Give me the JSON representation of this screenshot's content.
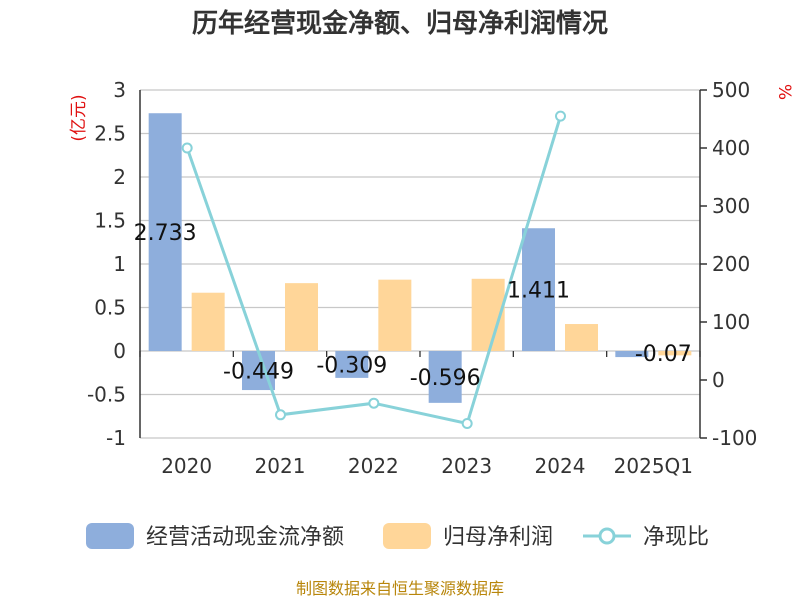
{
  "chart_data": {
    "type": "bar",
    "title": "历年经营现金净额、归母净利润情况",
    "categories": [
      "2020",
      "2021",
      "2022",
      "2023",
      "2024",
      "2025Q1"
    ],
    "left_axis": {
      "unit": "(亿元)",
      "ylim": [
        -1,
        3
      ],
      "ticks": [
        "3",
        "2.5",
        "2",
        "1.5",
        "1",
        "0.5",
        "0",
        "-0.5",
        "-1"
      ],
      "tick_values": [
        3,
        2.5,
        2,
        1.5,
        1,
        0.5,
        0,
        -0.5,
        -1
      ]
    },
    "right_axis": {
      "unit": "%",
      "ylim": [
        -100,
        500
      ],
      "ticks": [
        "500",
        "400",
        "300",
        "200",
        "100",
        "0",
        "-100"
      ],
      "tick_values": [
        500,
        400,
        300,
        200,
        100,
        0,
        -100
      ]
    },
    "series": [
      {
        "name": "经营活动现金流净额",
        "type": "bar",
        "axis": "left",
        "color": "#8eaedc",
        "values": [
          2.733,
          -0.449,
          -0.309,
          -0.596,
          1.411,
          -0.07
        ],
        "labels": [
          "2.733",
          "-0.449",
          "-0.309",
          "-0.596",
          "1.411",
          "-0.07"
        ]
      },
      {
        "name": "归母净利润",
        "type": "bar",
        "axis": "left",
        "color": "#ffd699",
        "values": [
          0.67,
          0.78,
          0.82,
          0.83,
          0.31,
          -0.05
        ]
      },
      {
        "name": "净现比",
        "type": "line",
        "axis": "right",
        "color": "#88d2d9",
        "values": [
          400,
          -60,
          -40,
          -75,
          455,
          null
        ]
      }
    ],
    "source": "制图数据来自恒生聚源数据库"
  }
}
